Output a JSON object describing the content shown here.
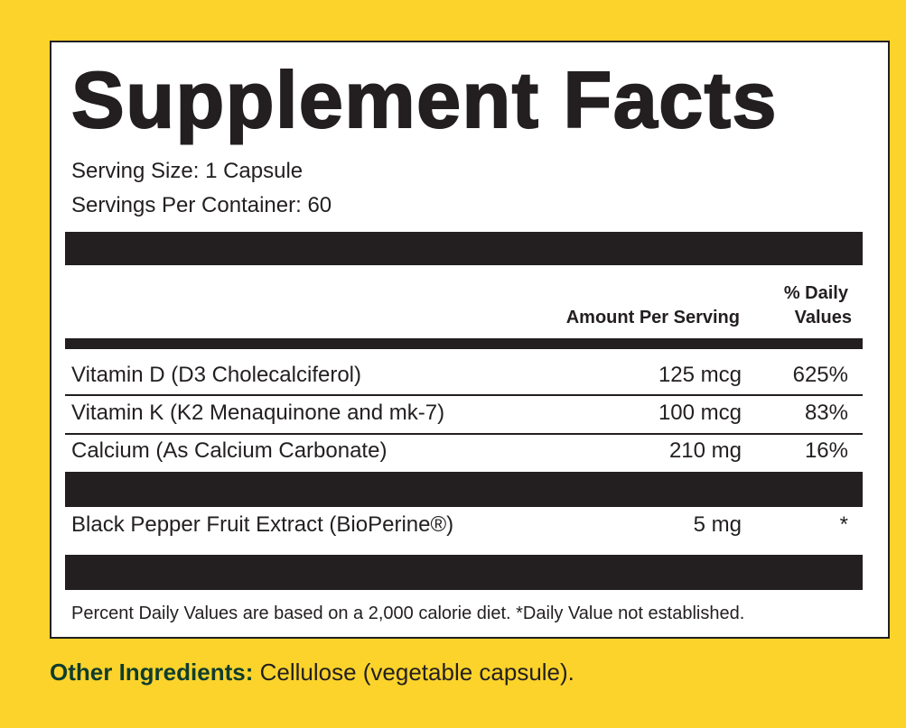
{
  "label": {
    "title": "Supplement Facts",
    "serving_size": "Serving Size: 1 Capsule",
    "servings_per_container": "Servings Per Container: 60",
    "columns": {
      "amount": "Amount Per Serving",
      "dv_line1": "% Daily",
      "dv_line2": "Values"
    },
    "rows": [
      {
        "name": "Vitamin D (D3 Cholecalciferol)",
        "amount": "125 mcg",
        "dv": "625%"
      },
      {
        "name": "Vitamin K (K2 Menaquinone and mk-7)",
        "amount": "100 mcg",
        "dv": "83%"
      },
      {
        "name": "Calcium (As Calcium Carbonate)",
        "amount": "210 mg",
        "dv": "16%"
      }
    ],
    "extra_rows": [
      {
        "name": "Black Pepper Fruit Extract (BioPerine®)",
        "amount": "5 mg",
        "dv": "*"
      }
    ],
    "footnote": "Percent Daily Values are based on a 2,000 calorie diet. *Daily Value not established."
  },
  "other_ingredients": {
    "label": "Other Ingredients:",
    "text": "Cellulose (vegetable capsule)."
  }
}
